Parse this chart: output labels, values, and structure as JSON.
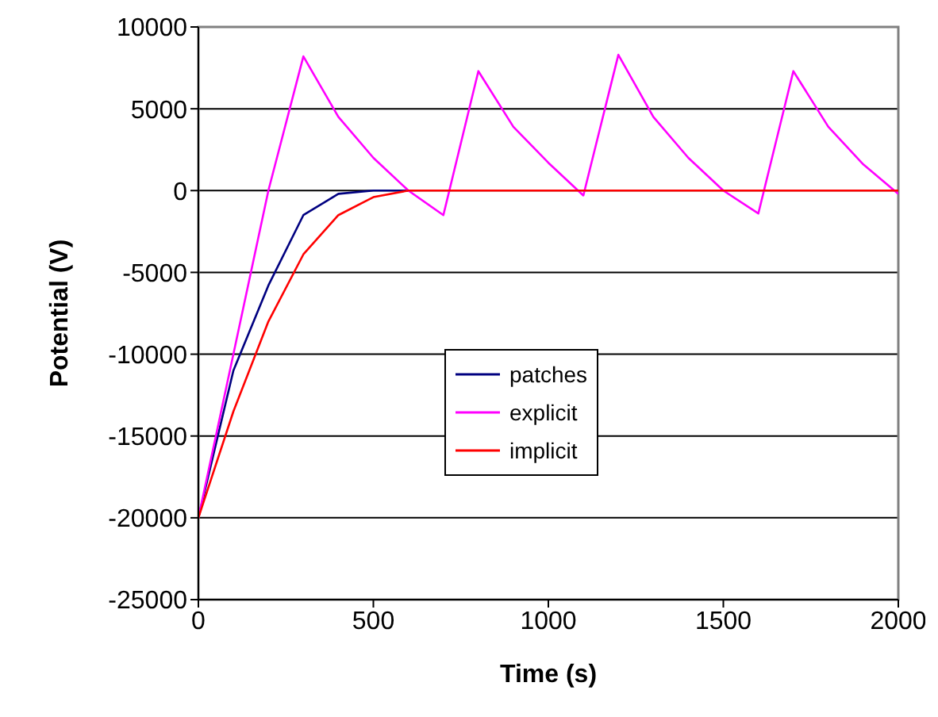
{
  "chart_data": {
    "type": "line",
    "xlabel": "Time (s)",
    "ylabel": "Potential (V)",
    "x": [
      0,
      100,
      200,
      300,
      400,
      500,
      600,
      700,
      800,
      900,
      1000,
      1100,
      1200,
      1300,
      1400,
      1500,
      1600,
      1700,
      1800,
      1900,
      2000
    ],
    "series": [
      {
        "name": "patches",
        "color": "#000080",
        "values": [
          -20000,
          -11000,
          -5800,
          -1500,
          -200,
          0,
          0,
          null,
          null,
          null,
          null,
          null,
          null,
          null,
          null,
          null,
          null,
          null,
          null,
          null,
          null
        ]
      },
      {
        "name": "explicit",
        "color": "#ff00ff",
        "values": [
          -20000,
          -10000,
          0,
          8200,
          4500,
          2000,
          0,
          -1500,
          7300,
          3900,
          1700,
          -300,
          8300,
          4500,
          2000,
          0,
          -1400,
          7300,
          3900,
          1600,
          -200
        ]
      },
      {
        "name": "implicit",
        "color": "#ff0000",
        "values": [
          -20000,
          -13500,
          -8000,
          -3900,
          -1500,
          -400,
          0,
          0,
          0,
          0,
          0,
          0,
          0,
          0,
          0,
          0,
          0,
          0,
          0,
          0,
          0
        ]
      }
    ],
    "xlim": [
      0,
      2000
    ],
    "xticks": [
      0,
      500,
      1000,
      1500,
      2000
    ],
    "ylim": [
      -25000,
      10000
    ],
    "yticks": [
      -25000,
      -20000,
      -15000,
      -10000,
      -5000,
      0,
      5000,
      10000
    ],
    "grid": "y",
    "legend": "center",
    "marker": "none",
    "line_style": "solid"
  }
}
